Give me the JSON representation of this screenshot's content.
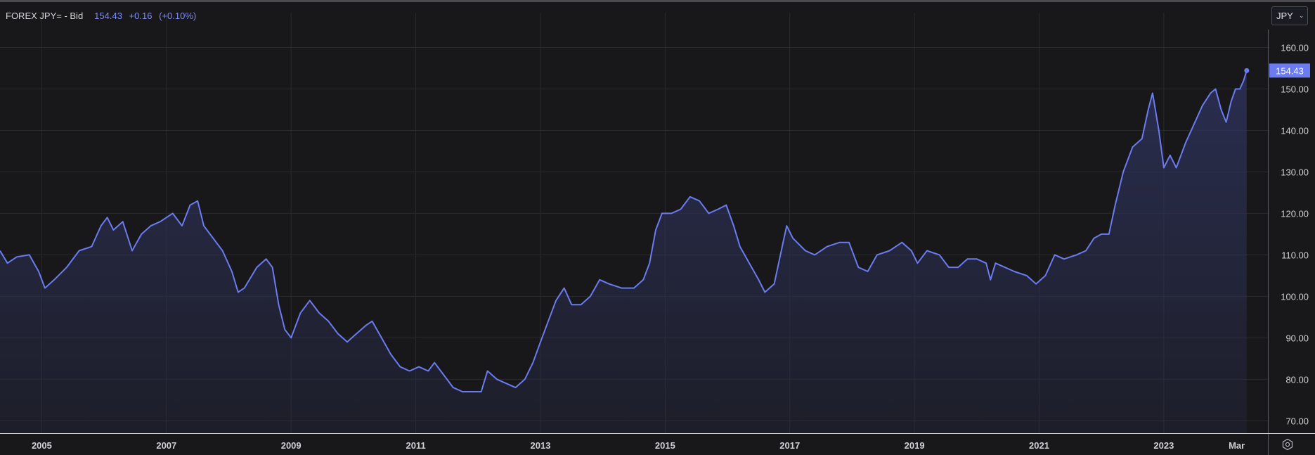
{
  "header": {
    "symbol": "FOREX JPY= - Bid",
    "last": "154.43",
    "change": "+0.16",
    "change_pct": "(+0.10%)"
  },
  "currency_select": {
    "value": "JPY",
    "icon": "chevron-down-icon"
  },
  "settings": {
    "icon": "settings-icon"
  },
  "colors": {
    "background": "#18181a",
    "line": "#6b7bf0",
    "area_top": "#2c3055",
    "grid": "#2a2a2d",
    "badge": "#6b7bf0",
    "axis_text": "#d0d0d4"
  },
  "chart_data": {
    "type": "area",
    "ylim": [
      67,
      165
    ],
    "xlim": [
      2004.33,
      2024.67
    ],
    "y_ticks": [
      "70.00",
      "80.00",
      "90.00",
      "100.00",
      "110.00",
      "120.00",
      "130.00",
      "140.00",
      "150.00",
      "160.00"
    ],
    "x_ticks": [
      "2005",
      "2007",
      "2009",
      "2011",
      "2013",
      "2015",
      "2017",
      "2019",
      "2021",
      "2023",
      "Mar"
    ],
    "x_tick_values": [
      2005,
      2007,
      2009,
      2011,
      2013,
      2015,
      2017,
      2019,
      2021,
      2023,
      2024.17
    ],
    "last_value_label": "154.43",
    "last_value": 154.43,
    "grid": true,
    "series": [
      {
        "points": [
          [
            2004.33,
            111
          ],
          [
            2004.45,
            108
          ],
          [
            2004.6,
            109.5
          ],
          [
            2004.8,
            110
          ],
          [
            2004.95,
            106
          ],
          [
            2005.05,
            102
          ],
          [
            2005.2,
            104
          ],
          [
            2005.4,
            107
          ],
          [
            2005.6,
            111
          ],
          [
            2005.8,
            112
          ],
          [
            2005.95,
            117
          ],
          [
            2006.05,
            119
          ],
          [
            2006.15,
            116
          ],
          [
            2006.3,
            118
          ],
          [
            2006.45,
            111
          ],
          [
            2006.6,
            115
          ],
          [
            2006.75,
            117
          ],
          [
            2006.9,
            118
          ],
          [
            2007.0,
            119
          ],
          [
            2007.1,
            120
          ],
          [
            2007.25,
            117
          ],
          [
            2007.38,
            122
          ],
          [
            2007.5,
            123
          ],
          [
            2007.6,
            117
          ],
          [
            2007.75,
            114
          ],
          [
            2007.9,
            111
          ],
          [
            2008.05,
            106
          ],
          [
            2008.15,
            101
          ],
          [
            2008.25,
            102
          ],
          [
            2008.45,
            107
          ],
          [
            2008.6,
            109
          ],
          [
            2008.7,
            107
          ],
          [
            2008.8,
            98
          ],
          [
            2008.9,
            92
          ],
          [
            2009.0,
            90
          ],
          [
            2009.15,
            96
          ],
          [
            2009.3,
            99
          ],
          [
            2009.45,
            96
          ],
          [
            2009.6,
            94
          ],
          [
            2009.75,
            91
          ],
          [
            2009.9,
            89
          ],
          [
            2010.05,
            91
          ],
          [
            2010.2,
            93
          ],
          [
            2010.3,
            94
          ],
          [
            2010.45,
            90
          ],
          [
            2010.6,
            86
          ],
          [
            2010.75,
            83
          ],
          [
            2010.9,
            82
          ],
          [
            2011.05,
            83
          ],
          [
            2011.2,
            82
          ],
          [
            2011.3,
            84
          ],
          [
            2011.45,
            81
          ],
          [
            2011.6,
            78
          ],
          [
            2011.75,
            77
          ],
          [
            2011.9,
            77
          ],
          [
            2012.05,
            77
          ],
          [
            2012.15,
            82
          ],
          [
            2012.3,
            80
          ],
          [
            2012.45,
            79
          ],
          [
            2012.6,
            78
          ],
          [
            2012.75,
            80
          ],
          [
            2012.88,
            84
          ],
          [
            2013.0,
            89
          ],
          [
            2013.1,
            93
          ],
          [
            2013.25,
            99
          ],
          [
            2013.38,
            102
          ],
          [
            2013.5,
            98
          ],
          [
            2013.65,
            98
          ],
          [
            2013.8,
            100
          ],
          [
            2013.95,
            104
          ],
          [
            2014.1,
            103
          ],
          [
            2014.3,
            102
          ],
          [
            2014.5,
            102
          ],
          [
            2014.65,
            104
          ],
          [
            2014.75,
            108
          ],
          [
            2014.85,
            116
          ],
          [
            2014.95,
            120
          ],
          [
            2015.1,
            120
          ],
          [
            2015.25,
            121
          ],
          [
            2015.4,
            124
          ],
          [
            2015.55,
            123
          ],
          [
            2015.7,
            120
          ],
          [
            2015.85,
            121
          ],
          [
            2015.98,
            122
          ],
          [
            2016.1,
            117
          ],
          [
            2016.2,
            112
          ],
          [
            2016.35,
            108
          ],
          [
            2016.5,
            104
          ],
          [
            2016.6,
            101
          ],
          [
            2016.75,
            103
          ],
          [
            2016.85,
            110
          ],
          [
            2016.95,
            117
          ],
          [
            2017.05,
            114
          ],
          [
            2017.25,
            111
          ],
          [
            2017.4,
            110
          ],
          [
            2017.6,
            112
          ],
          [
            2017.8,
            113
          ],
          [
            2017.95,
            113
          ],
          [
            2018.1,
            107
          ],
          [
            2018.25,
            106
          ],
          [
            2018.4,
            110
          ],
          [
            2018.6,
            111
          ],
          [
            2018.8,
            113
          ],
          [
            2018.95,
            111
          ],
          [
            2019.05,
            108
          ],
          [
            2019.2,
            111
          ],
          [
            2019.4,
            110
          ],
          [
            2019.55,
            107
          ],
          [
            2019.7,
            107
          ],
          [
            2019.85,
            109
          ],
          [
            2020.0,
            109
          ],
          [
            2020.15,
            108
          ],
          [
            2020.22,
            104
          ],
          [
            2020.3,
            108
          ],
          [
            2020.45,
            107
          ],
          [
            2020.6,
            106
          ],
          [
            2020.8,
            105
          ],
          [
            2020.95,
            103
          ],
          [
            2021.1,
            105
          ],
          [
            2021.25,
            110
          ],
          [
            2021.4,
            109
          ],
          [
            2021.6,
            110
          ],
          [
            2021.75,
            111
          ],
          [
            2021.88,
            114
          ],
          [
            2022.0,
            115
          ],
          [
            2022.12,
            115
          ],
          [
            2022.22,
            122
          ],
          [
            2022.35,
            130
          ],
          [
            2022.5,
            136
          ],
          [
            2022.65,
            138
          ],
          [
            2022.75,
            145
          ],
          [
            2022.82,
            149
          ],
          [
            2022.92,
            140
          ],
          [
            2023.0,
            131
          ],
          [
            2023.1,
            134
          ],
          [
            2023.2,
            131
          ],
          [
            2023.35,
            137
          ],
          [
            2023.5,
            142
          ],
          [
            2023.62,
            146
          ],
          [
            2023.75,
            149
          ],
          [
            2023.83,
            150
          ],
          [
            2023.92,
            145
          ],
          [
            2024.0,
            142
          ],
          [
            2024.08,
            147
          ],
          [
            2024.15,
            150
          ],
          [
            2024.22,
            150
          ],
          [
            2024.28,
            152
          ],
          [
            2024.33,
            154.43
          ]
        ]
      }
    ]
  }
}
